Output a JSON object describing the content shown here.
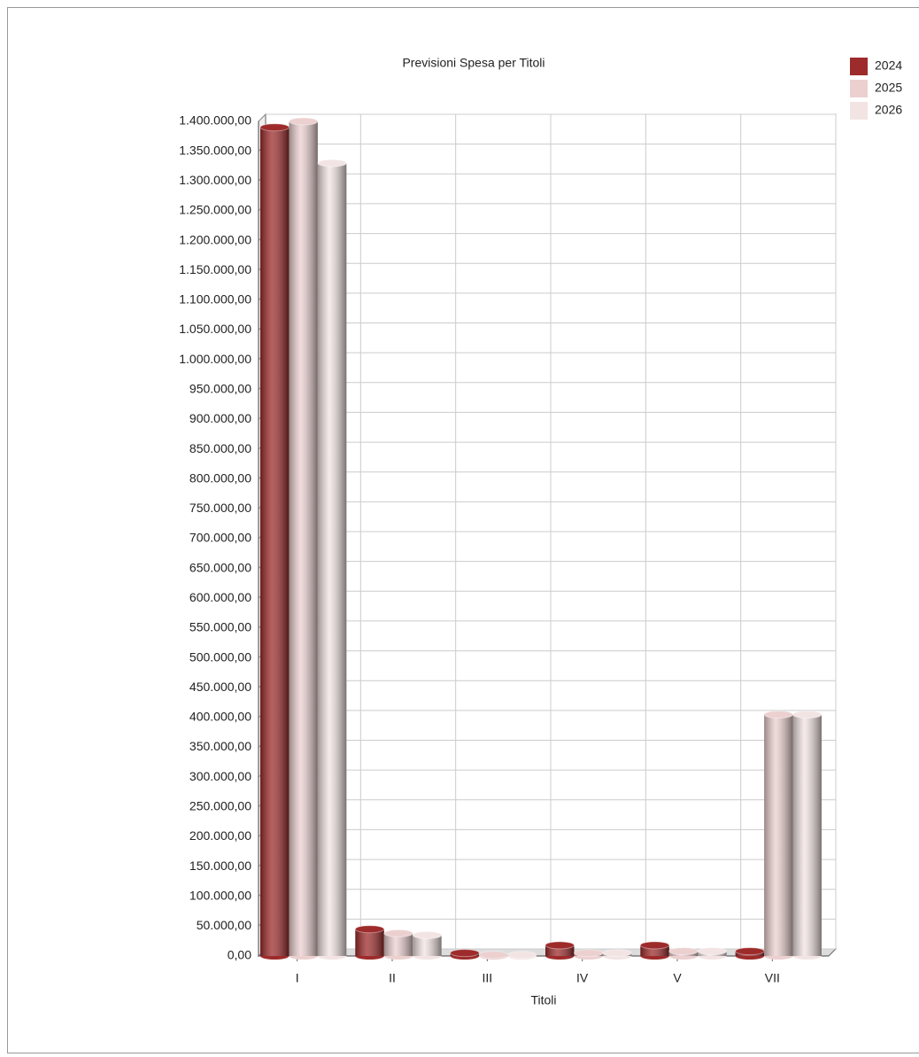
{
  "chart_data": {
    "type": "bar",
    "title": "Previsioni Spesa per Titoli",
    "x_label": "Titoli",
    "categories": [
      "I",
      "II",
      "III",
      "IV",
      "V",
      "VII"
    ],
    "series": [
      {
        "name": "2024",
        "color": "#9e2b2b",
        "values": [
          1390000,
          45000,
          5000,
          18000,
          18000,
          8000
        ]
      },
      {
        "name": "2025",
        "color": "#ecd0d0",
        "values": [
          1400000,
          38000,
          2000,
          5000,
          8000,
          405000
        ]
      },
      {
        "name": "2026",
        "color": "#f3e4e4",
        "values": [
          1330000,
          35000,
          2000,
          5000,
          8000,
          405000
        ]
      }
    ],
    "ylim": [
      0,
      1400000
    ],
    "yticks": [
      {
        "value": 0,
        "label": "0,00"
      },
      {
        "value": 50000,
        "label": "50.000,00"
      },
      {
        "value": 100000,
        "label": "100.000,00"
      },
      {
        "value": 150000,
        "label": "150.000,00"
      },
      {
        "value": 200000,
        "label": "200.000,00"
      },
      {
        "value": 250000,
        "label": "250.000,00"
      },
      {
        "value": 300000,
        "label": "300.000,00"
      },
      {
        "value": 350000,
        "label": "350.000,00"
      },
      {
        "value": 400000,
        "label": "400.000,00"
      },
      {
        "value": 450000,
        "label": "450.000,00"
      },
      {
        "value": 500000,
        "label": "500.000,00"
      },
      {
        "value": 550000,
        "label": "550.000,00"
      },
      {
        "value": 600000,
        "label": "600.000,00"
      },
      {
        "value": 650000,
        "label": "650.000,00"
      },
      {
        "value": 700000,
        "label": "700.000,00"
      },
      {
        "value": 750000,
        "label": "750.000,00"
      },
      {
        "value": 800000,
        "label": "800.000,00"
      },
      {
        "value": 850000,
        "label": "850.000,00"
      },
      {
        "value": 900000,
        "label": "900.000,00"
      },
      {
        "value": 950000,
        "label": "950.000,00"
      },
      {
        "value": 1000000,
        "label": "1.000.000,00"
      },
      {
        "value": 1050000,
        "label": "1.050.000,00"
      },
      {
        "value": 1100000,
        "label": "1.100.000,00"
      },
      {
        "value": 1150000,
        "label": "1.150.000,00"
      },
      {
        "value": 1200000,
        "label": "1.200.000,00"
      },
      {
        "value": 1250000,
        "label": "1.250.000,00"
      },
      {
        "value": 1300000,
        "label": "1.300.000,00"
      },
      {
        "value": 1350000,
        "label": "1.350.000,00"
      },
      {
        "value": 1400000,
        "label": "1.400.000,00"
      }
    ],
    "grid": true,
    "legend": "top-right"
  }
}
